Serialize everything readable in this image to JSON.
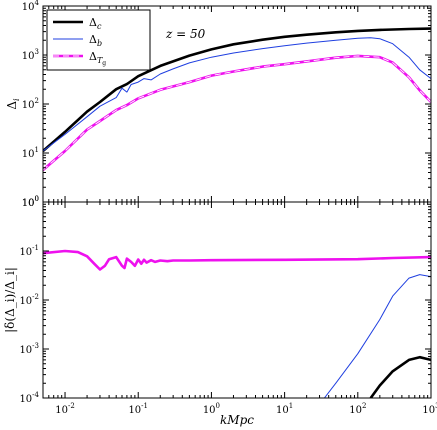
{
  "chart_data": [
    {
      "panel": "top",
      "type": "line",
      "x_scale": "log",
      "y_scale": "log",
      "xlim": [
        0.005,
        1000
      ],
      "ylim": [
        1,
        10000
      ],
      "ylabel": "Δ_i",
      "annotation": "z = 50",
      "legend_position": "top-left",
      "x_ticks": [
        0.01,
        0.1,
        1,
        10,
        100,
        1000
      ],
      "y_ticks": [
        {
          "value": 1,
          "base": "10",
          "exp": "0"
        },
        {
          "value": 10,
          "base": "10",
          "exp": "1"
        },
        {
          "value": 100,
          "base": "10",
          "exp": "2"
        },
        {
          "value": 1000,
          "base": "10",
          "exp": "3"
        },
        {
          "value": 10000,
          "base": "10",
          "exp": "4"
        }
      ],
      "series": [
        {
          "name": "Δ_c",
          "color": "#000000",
          "style": "thick",
          "x": [
            0.005,
            0.01,
            0.02,
            0.03,
            0.05,
            0.07,
            0.1,
            0.2,
            0.5,
            1,
            2,
            5,
            10,
            20,
            50,
            100,
            200,
            500,
            1000
          ],
          "y": [
            11,
            27,
            70,
            110,
            200,
            255,
            370,
            600,
            970,
            1300,
            1650,
            2050,
            2350,
            2600,
            2900,
            3100,
            3250,
            3400,
            3450
          ]
        },
        {
          "name": "Δ_b",
          "color": "#1f3fe0",
          "style": "thin",
          "x": [
            0.005,
            0.01,
            0.02,
            0.03,
            0.05,
            0.06,
            0.07,
            0.08,
            0.1,
            0.12,
            0.15,
            0.2,
            0.3,
            0.5,
            1,
            2,
            5,
            10,
            20,
            50,
            100,
            150,
            200,
            300,
            500,
            700,
            1000
          ],
          "y": [
            11,
            24,
            55,
            90,
            135,
            210,
            175,
            250,
            280,
            330,
            310,
            410,
            520,
            690,
            900,
            1100,
            1350,
            1550,
            1750,
            2000,
            2200,
            2250,
            2150,
            1700,
            900,
            500,
            330
          ]
        },
        {
          "name": "Δ_{T_g}",
          "color": "#ee11ee",
          "style": "thick-dashed-core",
          "x": [
            0.005,
            0.01,
            0.02,
            0.03,
            0.05,
            0.07,
            0.1,
            0.2,
            0.5,
            1,
            2,
            5,
            10,
            20,
            50,
            100,
            200,
            300,
            500,
            700,
            1000
          ],
          "y": [
            4.5,
            11,
            30,
            45,
            75,
            95,
            130,
            195,
            280,
            380,
            460,
            580,
            650,
            740,
            880,
            960,
            900,
            700,
            350,
            190,
            110
          ]
        }
      ]
    },
    {
      "panel": "bottom",
      "type": "line",
      "x_scale": "log",
      "y_scale": "log",
      "xlim": [
        0.005,
        1000
      ],
      "ylim": [
        0.0001,
        1
      ],
      "xlabel": "kMpc",
      "ylabel": "|δ(Δ_i)/Δ_i|",
      "x_ticks": [
        {
          "value": 0.01,
          "base": "10",
          "exp": "-2"
        },
        {
          "value": 0.1,
          "base": "10",
          "exp": "-1"
        },
        {
          "value": 1,
          "base": "10",
          "exp": "0"
        },
        {
          "value": 10,
          "base": "10",
          "exp": "1"
        },
        {
          "value": 100,
          "base": "10",
          "exp": "2"
        },
        {
          "value": 1000,
          "base": "10",
          "exp": "3"
        }
      ],
      "y_ticks": [
        {
          "value": 0.0001,
          "base": "10",
          "exp": "-4"
        },
        {
          "value": 0.001,
          "base": "10",
          "exp": "-3"
        },
        {
          "value": 0.01,
          "base": "10",
          "exp": "-2"
        },
        {
          "value": 0.1,
          "base": "10",
          "exp": "-1"
        },
        {
          "value": 1,
          "base": "10",
          "exp": "0"
        }
      ],
      "series": [
        {
          "name": "Δ_c",
          "color": "#000000",
          "style": "thick",
          "x": [
            150,
            200,
            300,
            500,
            700,
            1000
          ],
          "y": [
            0.0001,
            0.00018,
            0.00035,
            0.0006,
            0.00068,
            0.0006
          ]
        },
        {
          "name": "Δ_b",
          "color": "#1f3fe0",
          "style": "thin",
          "x": [
            35,
            50,
            100,
            200,
            300,
            500,
            700,
            1000
          ],
          "y": [
            0.0001,
            0.0002,
            0.0008,
            0.004,
            0.012,
            0.028,
            0.033,
            0.03
          ]
        },
        {
          "name": "Δ_{T_g}",
          "color": "#ee11ee",
          "style": "thick",
          "x": [
            0.005,
            0.01,
            0.015,
            0.02,
            0.025,
            0.03,
            0.035,
            0.04,
            0.05,
            0.06,
            0.065,
            0.07,
            0.08,
            0.09,
            0.1,
            0.11,
            0.12,
            0.13,
            0.15,
            0.17,
            0.2,
            0.25,
            0.3,
            0.5,
            1,
            10,
            100,
            300,
            1000
          ],
          "y": [
            0.09,
            0.1,
            0.095,
            0.078,
            0.055,
            0.042,
            0.05,
            0.068,
            0.075,
            0.05,
            0.045,
            0.07,
            0.06,
            0.05,
            0.067,
            0.055,
            0.066,
            0.058,
            0.065,
            0.06,
            0.064,
            0.062,
            0.064,
            0.064,
            0.065,
            0.066,
            0.068,
            0.072,
            0.075
          ]
        }
      ]
    }
  ]
}
